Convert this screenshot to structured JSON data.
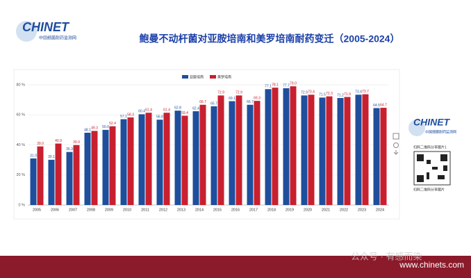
{
  "logo": {
    "name": "CHINET",
    "subtitle": "中国细菌耐药监测网"
  },
  "chart_data": {
    "type": "bar",
    "title": "鲍曼不动杆菌对亚胺培南和美罗培南耐药变迁（2005-2024）",
    "categories": [
      "2005",
      "2006",
      "2007",
      "2008",
      "2009",
      "2010",
      "2011",
      "2012",
      "2013",
      "2014",
      "2015",
      "2016",
      "2017",
      "2018",
      "2019",
      "2020",
      "2021",
      "2022",
      "2023",
      "2024"
    ],
    "series": [
      {
        "name": "亚胺培南",
        "color": "#1f4e9c",
        "values": [
          31.0,
          30.1,
          35.3,
          48.1,
          50.0,
          57.1,
          60.4,
          56.8,
          62.8,
          62.4,
          65.7,
          69.1,
          66.7,
          77.1,
          77.7,
          72.9,
          71.5,
          71.2,
          73.4,
          64.5
        ],
        "value_labels": [
          "31.0",
          "30.1",
          "35.3",
          "48.1",
          "50.0",
          "57.1",
          "60.4",
          "56.8",
          "62.8",
          "62.4",
          "65.7",
          "69.1",
          "66.7",
          "77.1",
          "77.7",
          "72.9",
          "71.5",
          "71.2",
          "73.4",
          "64.5"
        ]
      },
      {
        "name": "美罗培南",
        "color": "#c8202f",
        "values": [
          39.0,
          40.9,
          39.9,
          49.3,
          52.4,
          58.3,
          61.4,
          61.4,
          59.4,
          66.7,
          72.9,
          72.9,
          69.3,
          78.1,
          79.0,
          73.4,
          72.3,
          71.9,
          73.7,
          64.7
        ],
        "value_labels": [
          "39.0",
          "40.9",
          "39.9",
          "49.3",
          "52.4",
          "58.3",
          "61.4",
          "61.4",
          "59.4",
          "66.7",
          "72.9",
          "72.9",
          "69.3",
          "78.1",
          "79.0",
          "73.4",
          "72.3",
          "71.9",
          "73.7",
          "64.7"
        ]
      }
    ],
    "ylim": [
      0,
      80
    ],
    "yticks": [
      {
        "value": 0,
        "label": "0 %"
      },
      {
        "value": 20,
        "label": "20 %"
      },
      {
        "value": 40,
        "label": "40 %"
      },
      {
        "value": 60,
        "label": "60 %"
      },
      {
        "value": 80,
        "label": "80 %"
      }
    ],
    "grid": true
  },
  "sidebar": {
    "logo": "CHINET",
    "logo_subtitle": "中国细菌耐药监测网",
    "qr_caption_top": "扫码二维码分享图片1",
    "qr_caption_bottom": "扫码二维码分享图片"
  },
  "footer": {
    "watermark": "公众号 · 有感而染",
    "url": "www.chinets.com"
  }
}
